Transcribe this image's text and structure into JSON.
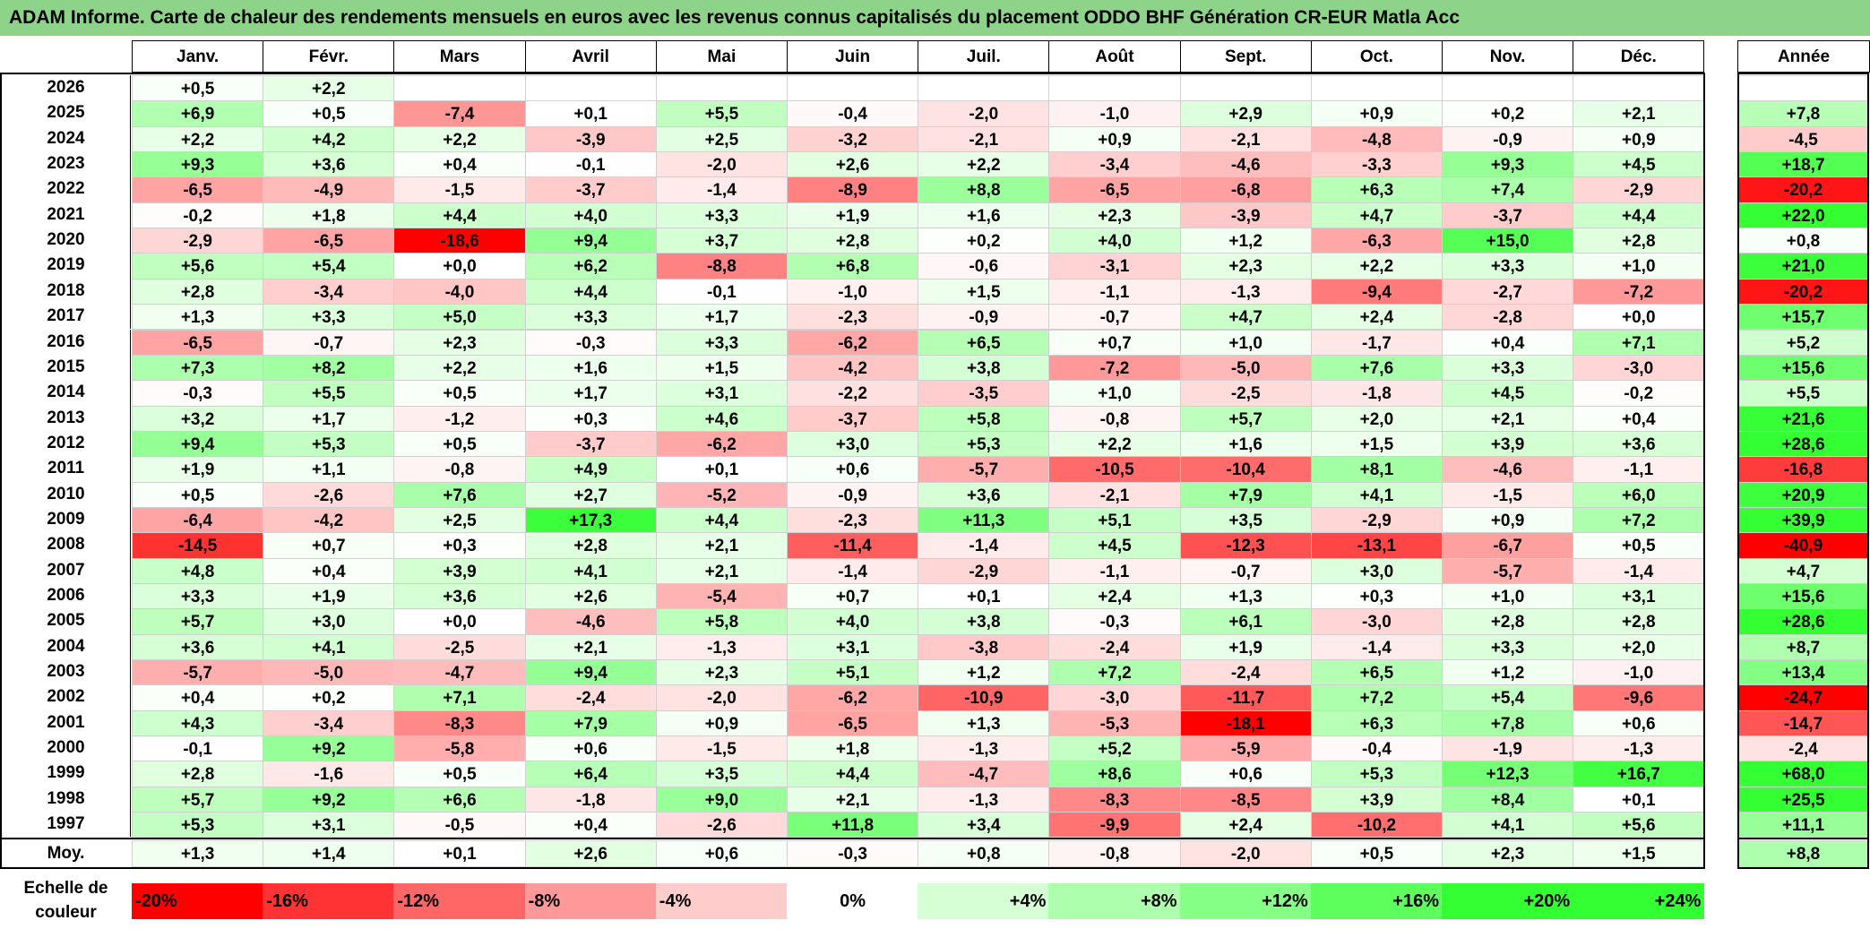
{
  "title": "ADAM Informe. Carte de chaleur des rendements mensuels en euros avec les revenus connus capitalisés du placement ODDO BHF Génération CR-EUR Matla Acc",
  "chart_data": {
    "type": "heatmap",
    "columns": [
      "Janv.",
      "Févr.",
      "Mars",
      "Avril",
      "Mai",
      "Juin",
      "Juil.",
      "Août",
      "Sept.",
      "Oct.",
      "Nov.",
      "Déc."
    ],
    "year_header": "Année",
    "rows": [
      {
        "year": "2026",
        "months": [
          "+0,5",
          "+2,2",
          "",
          "",
          "",
          "",
          "",
          "",
          "",
          "",
          "",
          ""
        ],
        "annual": ""
      },
      {
        "year": "2025",
        "months": [
          "+6,9",
          "+0,5",
          "-7,4",
          "+0,1",
          "+5,5",
          "-0,4",
          "-2,0",
          "-1,0",
          "+2,9",
          "+0,9",
          "+0,2",
          "+2,1"
        ],
        "annual": "+7,8"
      },
      {
        "year": "2024",
        "months": [
          "+2,2",
          "+4,2",
          "+2,2",
          "-3,9",
          "+2,5",
          "-3,2",
          "-2,1",
          "+0,9",
          "-2,1",
          "-4,8",
          "-0,9",
          "+0,9"
        ],
        "annual": "-4,5"
      },
      {
        "year": "2023",
        "months": [
          "+9,3",
          "+3,6",
          "+0,4",
          "-0,1",
          "-2,0",
          "+2,6",
          "+2,2",
          "-3,4",
          "-4,6",
          "-3,3",
          "+9,3",
          "+4,5"
        ],
        "annual": "+18,7"
      },
      {
        "year": "2022",
        "months": [
          "-6,5",
          "-4,9",
          "-1,5",
          "-3,7",
          "-1,4",
          "-8,9",
          "+8,8",
          "-6,5",
          "-6,8",
          "+6,3",
          "+7,4",
          "-2,9"
        ],
        "annual": "-20,2"
      },
      {
        "year": "2021",
        "months": [
          "-0,2",
          "+1,8",
          "+4,4",
          "+4,0",
          "+3,3",
          "+1,9",
          "+1,6",
          "+2,3",
          "-3,9",
          "+4,7",
          "-3,7",
          "+4,4"
        ],
        "annual": "+22,0"
      },
      {
        "year": "2020",
        "months": [
          "-2,9",
          "-6,5",
          "-18,6",
          "+9,4",
          "+3,7",
          "+2,8",
          "+0,2",
          "+4,0",
          "+1,2",
          "-6,3",
          "+15,0",
          "+2,8"
        ],
        "annual": "+0,8"
      },
      {
        "year": "2019",
        "months": [
          "+5,6",
          "+5,4",
          "+0,0",
          "+6,2",
          "-8,8",
          "+6,8",
          "-0,6",
          "-3,1",
          "+2,3",
          "+2,2",
          "+3,3",
          "+1,0"
        ],
        "annual": "+21,0"
      },
      {
        "year": "2018",
        "months": [
          "+2,8",
          "-3,4",
          "-4,0",
          "+4,4",
          "-0,1",
          "-1,0",
          "+1,5",
          "-1,1",
          "-1,3",
          "-9,4",
          "-2,7",
          "-7,2"
        ],
        "annual": "-20,2"
      },
      {
        "year": "2017",
        "months": [
          "+1,3",
          "+3,3",
          "+5,0",
          "+3,3",
          "+1,7",
          "-2,3",
          "-0,9",
          "-0,7",
          "+4,7",
          "+2,4",
          "-2,8",
          "+0,0"
        ],
        "annual": "+15,7"
      },
      {
        "year": "2016",
        "months": [
          "-6,5",
          "-0,7",
          "+2,3",
          "-0,3",
          "+3,3",
          "-6,2",
          "+6,5",
          "+0,7",
          "+1,0",
          "-1,7",
          "+0,4",
          "+7,1"
        ],
        "annual": "+5,2"
      },
      {
        "year": "2015",
        "months": [
          "+7,3",
          "+8,2",
          "+2,2",
          "+1,6",
          "+1,5",
          "-4,2",
          "+3,8",
          "-7,2",
          "-5,0",
          "+7,6",
          "+3,3",
          "-3,0"
        ],
        "annual": "+15,6"
      },
      {
        "year": "2014",
        "months": [
          "-0,3",
          "+5,5",
          "+0,5",
          "+1,7",
          "+3,1",
          "-2,2",
          "-3,5",
          "+1,0",
          "-2,5",
          "-1,8",
          "+4,5",
          "-0,2"
        ],
        "annual": "+5,5"
      },
      {
        "year": "2013",
        "months": [
          "+3,2",
          "+1,7",
          "-1,2",
          "+0,3",
          "+4,6",
          "-3,7",
          "+5,8",
          "-0,8",
          "+5,7",
          "+2,0",
          "+2,1",
          "+0,4"
        ],
        "annual": "+21,6"
      },
      {
        "year": "2012",
        "months": [
          "+9,4",
          "+5,3",
          "+0,5",
          "-3,7",
          "-6,2",
          "+3,0",
          "+5,3",
          "+2,2",
          "+1,6",
          "+1,5",
          "+3,9",
          "+3,6"
        ],
        "annual": "+28,6"
      },
      {
        "year": "2011",
        "months": [
          "+1,9",
          "+1,1",
          "-0,8",
          "+4,9",
          "+0,1",
          "+0,6",
          "-5,7",
          "-10,5",
          "-10,4",
          "+8,1",
          "-4,6",
          "-1,1"
        ],
        "annual": "-16,8"
      },
      {
        "year": "2010",
        "months": [
          "+0,5",
          "-2,6",
          "+7,6",
          "+2,7",
          "-5,2",
          "-0,9",
          "+3,6",
          "-2,1",
          "+7,9",
          "+4,1",
          "-1,5",
          "+6,0"
        ],
        "annual": "+20,9"
      },
      {
        "year": "2009",
        "months": [
          "-6,4",
          "-4,2",
          "+2,5",
          "+17,3",
          "+4,4",
          "-2,3",
          "+11,3",
          "+5,1",
          "+3,5",
          "-2,9",
          "+0,9",
          "+7,2"
        ],
        "annual": "+39,9"
      },
      {
        "year": "2008",
        "months": [
          "-14,5",
          "+0,7",
          "+0,3",
          "+2,8",
          "+2,1",
          "-11,4",
          "-1,4",
          "+4,5",
          "-12,3",
          "-13,1",
          "-6,7",
          "+0,5"
        ],
        "annual": "-40,9"
      },
      {
        "year": "2007",
        "months": [
          "+4,8",
          "+0,4",
          "+3,9",
          "+4,1",
          "+2,1",
          "-1,4",
          "-2,9",
          "-1,1",
          "-0,7",
          "+3,0",
          "-5,7",
          "-1,4"
        ],
        "annual": "+4,7"
      },
      {
        "year": "2006",
        "months": [
          "+3,3",
          "+1,9",
          "+3,6",
          "+2,6",
          "-5,4",
          "+0,7",
          "+0,1",
          "+2,4",
          "+1,3",
          "+0,3",
          "+1,0",
          "+3,1"
        ],
        "annual": "+15,6"
      },
      {
        "year": "2005",
        "months": [
          "+5,7",
          "+3,0",
          "+0,0",
          "-4,6",
          "+5,8",
          "+4,0",
          "+3,8",
          "-0,3",
          "+6,1",
          "-3,0",
          "+2,8",
          "+2,8"
        ],
        "annual": "+28,6"
      },
      {
        "year": "2004",
        "months": [
          "+3,6",
          "+4,1",
          "-2,5",
          "+2,1",
          "-1,3",
          "+3,1",
          "-3,8",
          "-2,4",
          "+1,9",
          "-1,4",
          "+3,3",
          "+2,0"
        ],
        "annual": "+8,7"
      },
      {
        "year": "2003",
        "months": [
          "-5,7",
          "-5,0",
          "-4,7",
          "+9,4",
          "+2,3",
          "+5,1",
          "+1,2",
          "+7,2",
          "-2,4",
          "+6,5",
          "+1,2",
          "-1,0"
        ],
        "annual": "+13,4"
      },
      {
        "year": "2002",
        "months": [
          "+0,4",
          "+0,2",
          "+7,1",
          "-2,4",
          "-2,0",
          "-6,2",
          "-10,9",
          "-3,0",
          "-11,7",
          "+7,2",
          "+5,4",
          "-9,6"
        ],
        "annual": "-24,7"
      },
      {
        "year": "2001",
        "months": [
          "+4,3",
          "-3,4",
          "-8,3",
          "+7,9",
          "+0,9",
          "-6,5",
          "+1,3",
          "-5,3",
          "-18,1",
          "+6,3",
          "+7,8",
          "+0,6"
        ],
        "annual": "-14,7"
      },
      {
        "year": "2000",
        "months": [
          "-0,1",
          "+9,2",
          "-5,8",
          "+0,6",
          "-1,5",
          "+1,8",
          "-1,3",
          "+5,2",
          "-5,9",
          "-0,4",
          "-1,9",
          "-1,3"
        ],
        "annual": "-2,4"
      },
      {
        "year": "1999",
        "months": [
          "+2,8",
          "-1,6",
          "+0,5",
          "+6,4",
          "+3,5",
          "+4,4",
          "-4,7",
          "+8,6",
          "+0,6",
          "+5,3",
          "+12,3",
          "+16,7"
        ],
        "annual": "+68,0"
      },
      {
        "year": "1998",
        "months": [
          "+5,7",
          "+9,2",
          "+6,6",
          "-1,8",
          "+9,0",
          "+2,1",
          "-1,3",
          "-8,3",
          "-8,5",
          "+3,9",
          "+8,4",
          "+0,1"
        ],
        "annual": "+25,5"
      },
      {
        "year": "1997",
        "months": [
          "+5,3",
          "+3,1",
          "-0,5",
          "+0,4",
          "-2,6",
          "+11,8",
          "+3,4",
          "-9,9",
          "+2,4",
          "-10,2",
          "+4,1",
          "+5,6"
        ],
        "annual": "+11,1"
      }
    ],
    "average": {
      "label": "Moy.",
      "months": [
        "+1,3",
        "+1,4",
        "+0,1",
        "+2,6",
        "+0,6",
        "-0,3",
        "+0,8",
        "-0,8",
        "-2,0",
        "+0,5",
        "+2,3",
        "+1,5"
      ],
      "annual": "+8,8"
    },
    "color_scale": {
      "label": "Echelle de couleur",
      "stops": [
        "-20%",
        "-16%",
        "-12%",
        "-8%",
        "-4%",
        "0%",
        "+4%",
        "+8%",
        "+12%",
        "+16%",
        "+20%",
        "+24%"
      ],
      "negative_color": "#ff0000",
      "neutral_color": "#ffffff",
      "positive_color": "#33ff33"
    }
  }
}
